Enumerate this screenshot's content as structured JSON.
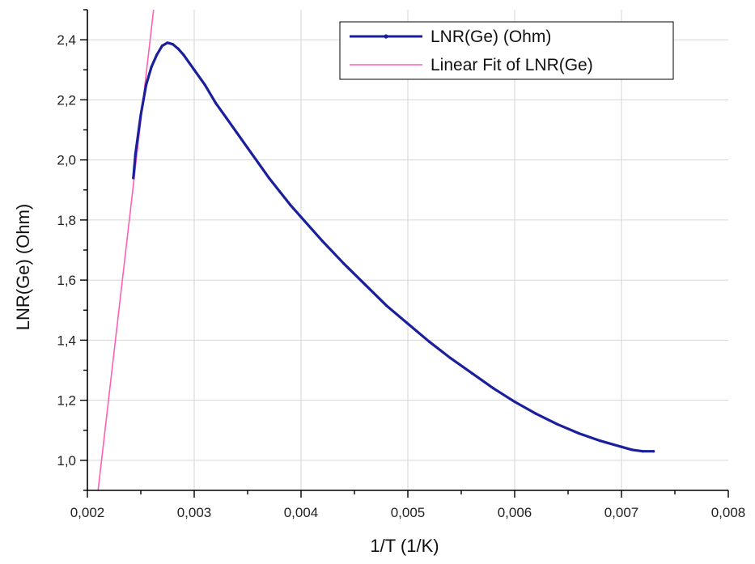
{
  "chart_data": {
    "type": "line",
    "xlabel": "1/T (1/K)",
    "ylabel": "LNR(Ge) (Ohm)",
    "xlim": [
      0.002,
      0.008
    ],
    "ylim": [
      0.9,
      2.5
    ],
    "x_ticks": [
      0.002,
      0.003,
      0.004,
      0.005,
      0.006,
      0.007,
      0.008
    ],
    "x_tick_labels": [
      "0,002",
      "0,003",
      "0,004",
      "0,005",
      "0,006",
      "0,007",
      "0,008"
    ],
    "y_ticks": [
      1.0,
      1.2,
      1.4,
      1.6,
      1.8,
      2.0,
      2.2,
      2.4
    ],
    "y_tick_labels": [
      "1,0",
      "1,2",
      "1,4",
      "1,6",
      "1,8",
      "2,0",
      "2,2",
      "2,4"
    ],
    "grid": true,
    "legend_position": "top-right",
    "series": [
      {
        "name": "LNR(Ge) (Ohm)",
        "color": "#1a1f9c",
        "marker": "line-with-dots",
        "x": [
          0.00243,
          0.00245,
          0.0025,
          0.00255,
          0.0026,
          0.00265,
          0.0027,
          0.00275,
          0.0028,
          0.00285,
          0.0029,
          0.003,
          0.0031,
          0.0032,
          0.0033,
          0.0034,
          0.0035,
          0.0036,
          0.0037,
          0.0038,
          0.0039,
          0.004,
          0.0042,
          0.0044,
          0.0046,
          0.0048,
          0.005,
          0.0052,
          0.0054,
          0.0056,
          0.0058,
          0.006,
          0.0062,
          0.0064,
          0.0066,
          0.0068,
          0.007,
          0.0071,
          0.0072,
          0.0073
        ],
        "y": [
          1.94,
          2.02,
          2.15,
          2.25,
          2.31,
          2.35,
          2.38,
          2.39,
          2.385,
          2.37,
          2.35,
          2.3,
          2.25,
          2.19,
          2.14,
          2.09,
          2.04,
          1.99,
          1.94,
          1.895,
          1.85,
          1.81,
          1.73,
          1.655,
          1.585,
          1.515,
          1.455,
          1.395,
          1.34,
          1.29,
          1.24,
          1.195,
          1.155,
          1.12,
          1.09,
          1.065,
          1.045,
          1.035,
          1.03,
          1.03
        ]
      },
      {
        "name": "Linear Fit of LNR(Ge)",
        "color": "#ff5fb5",
        "marker": "line",
        "x": [
          0.0021,
          0.00262
        ],
        "y": [
          0.9,
          2.5
        ]
      }
    ]
  }
}
